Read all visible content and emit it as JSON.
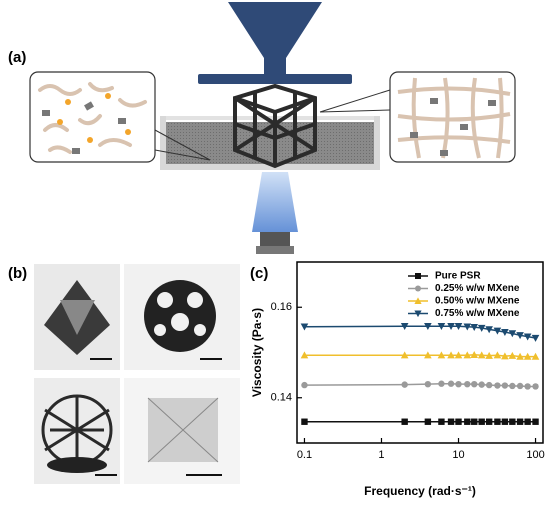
{
  "panels": {
    "a": "(a)",
    "b": "(b)"
  },
  "chart_data": {
    "type": "line",
    "panel_label": "(c)",
    "x_label": "Frequency (rad·s⁻¹)",
    "y_label": "Viscosity (Pa·s)",
    "x": [
      0.1,
      2,
      4,
      6,
      8,
      10,
      13,
      16,
      20,
      25,
      32,
      40,
      50,
      63,
      79,
      100
    ],
    "xlim": [
      0.08,
      125
    ],
    "xticks": [
      0.1,
      1,
      10,
      100
    ],
    "xlog": true,
    "ylim": [
      0.13,
      0.17
    ],
    "yticks": [
      0.14,
      0.16
    ],
    "legend": "upper right",
    "series": [
      {
        "name": "Pure PSR",
        "color": "#111111",
        "marker": "square",
        "values": [
          0.1347,
          0.1347,
          0.1347,
          0.1347,
          0.1347,
          0.1347,
          0.1347,
          0.1347,
          0.1347,
          0.1347,
          0.1347,
          0.1347,
          0.1347,
          0.1347,
          0.1347,
          0.1347
        ]
      },
      {
        "name": "0.25% w/w MXene",
        "color": "#9a9a9a",
        "marker": "circle",
        "values": [
          0.1428,
          0.1429,
          0.143,
          0.1431,
          0.1431,
          0.143,
          0.143,
          0.143,
          0.1429,
          0.1428,
          0.1427,
          0.1427,
          0.1426,
          0.1426,
          0.1425,
          0.1425
        ]
      },
      {
        "name": "0.50% w/w MXene",
        "color": "#f0bf2c",
        "marker": "triangle-up",
        "values": [
          0.1494,
          0.1494,
          0.1494,
          0.1494,
          0.1494,
          0.1494,
          0.1494,
          0.1495,
          0.1494,
          0.1493,
          0.1494,
          0.1492,
          0.1493,
          0.1491,
          0.1491,
          0.1491
        ]
      },
      {
        "name": "0.75% w/w MXene",
        "color": "#1c4a70",
        "marker": "triangle-down",
        "values": [
          0.1557,
          0.1558,
          0.1558,
          0.1558,
          0.1558,
          0.1558,
          0.1557,
          0.1556,
          0.1554,
          0.1551,
          0.1548,
          0.1545,
          0.1542,
          0.1538,
          0.1535,
          0.1532
        ]
      }
    ]
  }
}
